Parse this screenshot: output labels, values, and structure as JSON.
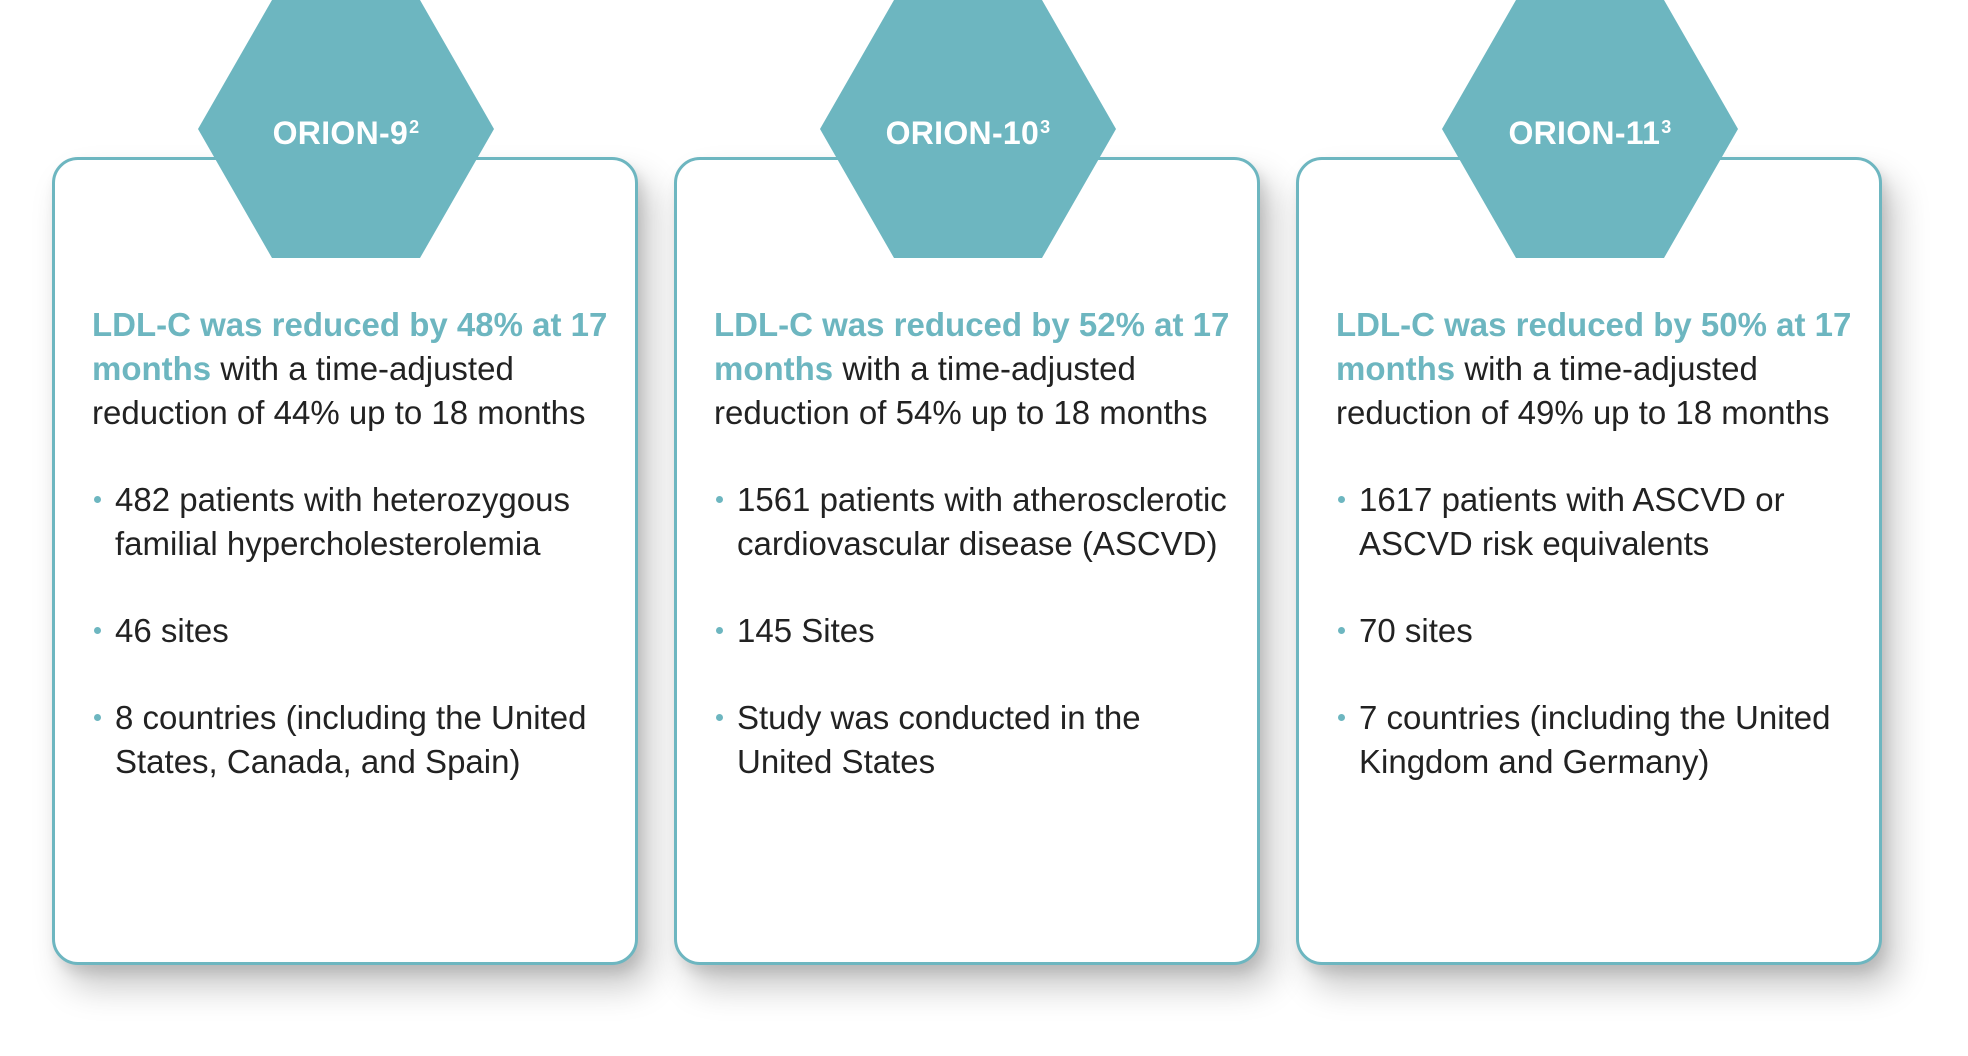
{
  "colors": {
    "accent": "#6db6c0",
    "text": "#222222",
    "background": "#ffffff"
  },
  "cards": [
    {
      "title": "ORION-9",
      "title_sup": "2",
      "lead_highlight": "LDL-C was reduced by 48% at 17 months",
      "lead_rest": " with a time-adjusted reduction of 44% up to 18 months",
      "bullets": [
        "482 patients with heterozygous familial hypercholesterolemia",
        "46 sites",
        "8 countries (including the United States, Canada, and Spain)"
      ]
    },
    {
      "title": "ORION-10",
      "title_sup": "3",
      "lead_highlight": "LDL-C was reduced by 52% at 17 months",
      "lead_rest": " with a time-adjusted reduction of 54% up to 18 months",
      "bullets": [
        "1561 patients with atherosclerotic cardiovascular disease (ASCVD)",
        "145 Sites",
        "Study was conducted in the United States"
      ]
    },
    {
      "title": "ORION-11",
      "title_sup": "3",
      "lead_highlight": "LDL-C was reduced by 50% at 17 months",
      "lead_rest": " with a time-adjusted reduction of 49% up to 18 months",
      "bullets": [
        "1617 patients with ASCVD or ASCVD risk equivalents",
        "70 sites",
        "7 countries (including the United Kingdom and Germany)"
      ]
    }
  ]
}
